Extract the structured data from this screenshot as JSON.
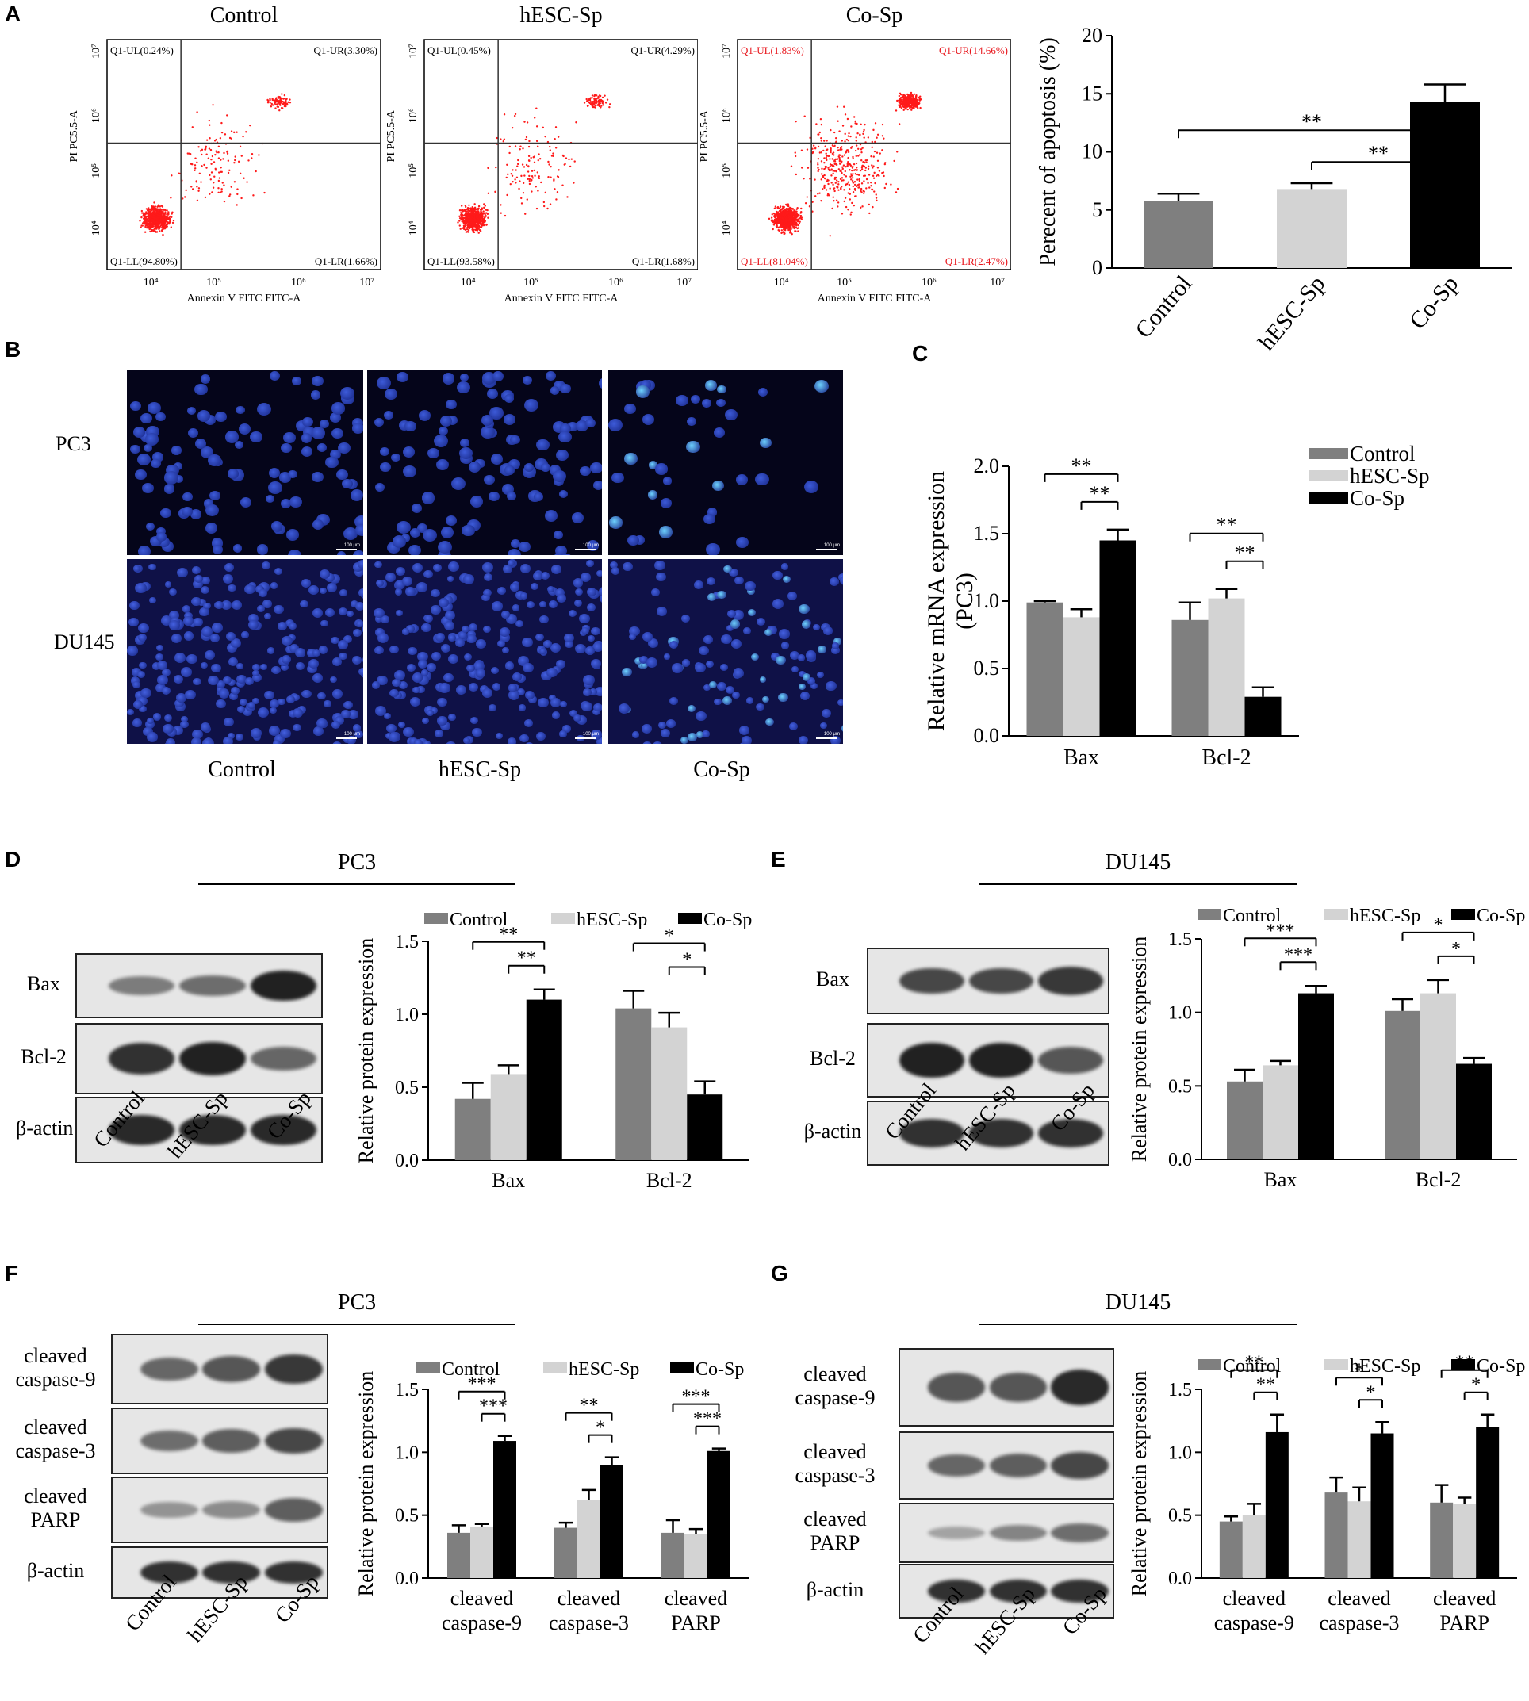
{
  "panels": {
    "A": {
      "label": "A",
      "flow": [
        {
          "title": "Control",
          "quadrants": {
            "ul": "Q1-UL(0.24%)",
            "ur": "Q1-UR(3.30%)",
            "ll": "Q1-LL(94.80%)",
            "lr": "Q1-LR(1.66%)"
          },
          "red_text": false
        },
        {
          "title": "hESC-Sp",
          "quadrants": {
            "ul": "Q1-UL(0.45%)",
            "ur": "Q1-UR(4.29%)",
            "ll": "Q1-LL(93.58%)",
            "lr": "Q1-LR(1.68%)"
          },
          "red_text": false
        },
        {
          "title": "Co-Sp",
          "quadrants": {
            "ul": "Q1-UL(1.83%)",
            "ur": "Q1-UR(14.66%)",
            "ll": "Q1-LL(81.04%)",
            "lr": "Q1-LR(2.47%)"
          },
          "red_text": true
        }
      ],
      "flow_x_label": "Annexin V FITC FITC-A",
      "flow_y_label": "PI PC5.5-A",
      "flow_ticks": {
        "x": [
          "10⁴",
          "10⁵",
          "10⁶",
          "10⁷"
        ],
        "y": [
          "10⁴",
          "10⁵",
          "10⁶",
          "10⁷"
        ]
      }
    },
    "B": {
      "label": "B",
      "rows": [
        "PC3",
        "DU145"
      ],
      "cols": [
        "Control",
        "hESC-Sp",
        "Co-Sp"
      ],
      "scale_text": "100 μm"
    },
    "C": {
      "label": "C"
    },
    "D": {
      "label": "D",
      "title": "PC3",
      "blot_labels": [
        "Bax",
        "Bcl-2",
        "β-actin"
      ],
      "lanes": [
        "Control",
        "hESC-Sp",
        "Co-Sp"
      ]
    },
    "E": {
      "label": "E",
      "title": "DU145",
      "blot_labels": [
        "Bax",
        "Bcl-2",
        "β-actin"
      ],
      "lanes": [
        "Control",
        "hESC-Sp",
        "Co-Sp"
      ]
    },
    "F": {
      "label": "F",
      "title": "PC3",
      "blot_labels": [
        "cleaved\ncaspase-9",
        "cleaved\ncaspase-3",
        "cleaved\nPARP",
        "β-actin"
      ],
      "lanes": [
        "Control",
        "hESC-Sp",
        "Co-Sp"
      ]
    },
    "G": {
      "label": "G",
      "title": "DU145",
      "blot_labels": [
        "cleaved\ncaspase-9",
        "cleaved\ncaspase-3",
        "cleaved\nPARP",
        "β-actin"
      ],
      "lanes": [
        "Control",
        "hESC-Sp",
        "Co-Sp"
      ]
    }
  },
  "colors": {
    "control": "#7f7f7f",
    "hesc": "#d3d3d3",
    "cosp": "#000000",
    "dots": "#ff1a1a"
  },
  "chart_data": [
    {
      "id": "A",
      "type": "bar",
      "categories": [
        "Control",
        "hESC-Sp",
        "Co-Sp"
      ],
      "values": [
        5.8,
        6.8,
        14.3
      ],
      "errors": [
        0.6,
        0.5,
        1.5
      ],
      "ylabel": "Perecent of apoptosis (%)",
      "ylim": [
        0,
        20
      ],
      "yticks": [
        "0",
        "5",
        "10",
        "15",
        "20"
      ],
      "sig": [
        {
          "from": 0,
          "to": 2,
          "text": "**"
        },
        {
          "from": 1,
          "to": 2,
          "text": "**"
        }
      ]
    },
    {
      "id": "C",
      "type": "bar",
      "categories": [
        "Bax",
        "Bcl-2"
      ],
      "series": [
        {
          "name": "Control",
          "values": [
            0.99,
            0.86
          ],
          "errors": [
            0.01,
            0.13
          ]
        },
        {
          "name": "hESC-Sp",
          "values": [
            0.88,
            1.02
          ],
          "errors": [
            0.06,
            0.07
          ]
        },
        {
          "name": "Co-Sp",
          "values": [
            1.45,
            0.29
          ],
          "errors": [
            0.08,
            0.07
          ]
        }
      ],
      "ylabel": "Relative mRNA expression\n(PC3)",
      "ylim": [
        0,
        2.0
      ],
      "yticks": [
        "0.0",
        "0.5",
        "1.0",
        "1.5",
        "2.0"
      ],
      "sig": [
        {
          "group": 0,
          "from": 0,
          "to": 2,
          "text": "**"
        },
        {
          "group": 0,
          "from": 1,
          "to": 2,
          "text": "**"
        },
        {
          "group": 1,
          "from": 0,
          "to": 2,
          "text": "**"
        },
        {
          "group": 1,
          "from": 1,
          "to": 2,
          "text": "**"
        }
      ]
    },
    {
      "id": "D",
      "type": "bar",
      "categories": [
        "Bax",
        "Bcl-2"
      ],
      "series": [
        {
          "name": "Control",
          "values": [
            0.42,
            1.04
          ],
          "errors": [
            0.11,
            0.12
          ]
        },
        {
          "name": "hESC-Sp",
          "values": [
            0.59,
            0.91
          ],
          "errors": [
            0.06,
            0.1
          ]
        },
        {
          "name": "Co-Sp",
          "values": [
            1.1,
            0.45
          ],
          "errors": [
            0.07,
            0.09
          ]
        }
      ],
      "ylabel": "Relative protein expression",
      "ylim": [
        0,
        1.5
      ],
      "yticks": [
        "0.0",
        "0.5",
        "1.0",
        "1.5"
      ],
      "sig": [
        {
          "group": 0,
          "from": 0,
          "to": 2,
          "text": "**"
        },
        {
          "group": 0,
          "from": 1,
          "to": 2,
          "text": "**"
        },
        {
          "group": 1,
          "from": 0,
          "to": 2,
          "text": "*"
        },
        {
          "group": 1,
          "from": 1,
          "to": 2,
          "text": "*"
        }
      ]
    },
    {
      "id": "E",
      "type": "bar",
      "categories": [
        "Bax",
        "Bcl-2"
      ],
      "series": [
        {
          "name": "Control",
          "values": [
            0.53,
            1.01
          ],
          "errors": [
            0.08,
            0.08
          ]
        },
        {
          "name": "hESC-Sp",
          "values": [
            0.64,
            1.13
          ],
          "errors": [
            0.03,
            0.09
          ]
        },
        {
          "name": "Co-Sp",
          "values": [
            1.13,
            0.65
          ],
          "errors": [
            0.05,
            0.04
          ]
        }
      ],
      "ylabel": "Relative protein expression",
      "ylim": [
        0,
        1.5
      ],
      "yticks": [
        "0.0",
        "0.5",
        "1.0",
        "1.5"
      ],
      "sig": [
        {
          "group": 0,
          "from": 0,
          "to": 2,
          "text": "***"
        },
        {
          "group": 0,
          "from": 1,
          "to": 2,
          "text": "***"
        },
        {
          "group": 1,
          "from": 0,
          "to": 2,
          "text": "*"
        },
        {
          "group": 1,
          "from": 1,
          "to": 2,
          "text": "*"
        }
      ]
    },
    {
      "id": "F",
      "type": "bar",
      "categories": [
        "cleaved\ncaspase-9",
        "cleaved\ncaspase-3",
        "cleaved\nPARP"
      ],
      "series": [
        {
          "name": "Control",
          "values": [
            0.36,
            0.4,
            0.36
          ],
          "errors": [
            0.06,
            0.04,
            0.1
          ]
        },
        {
          "name": "hESC-Sp",
          "values": [
            0.41,
            0.62,
            0.35
          ],
          "errors": [
            0.02,
            0.08,
            0.04
          ]
        },
        {
          "name": "Co-Sp",
          "values": [
            1.09,
            0.9,
            1.01
          ],
          "errors": [
            0.04,
            0.06,
            0.02
          ]
        }
      ],
      "ylabel": "Relative protein expression",
      "ylim": [
        0,
        1.5
      ],
      "yticks": [
        "0.0",
        "0.5",
        "1.0",
        "1.5"
      ],
      "sig": [
        {
          "group": 0,
          "from": 0,
          "to": 2,
          "text": "***"
        },
        {
          "group": 0,
          "from": 1,
          "to": 2,
          "text": "***"
        },
        {
          "group": 1,
          "from": 0,
          "to": 2,
          "text": "**"
        },
        {
          "group": 1,
          "from": 1,
          "to": 2,
          "text": "*"
        },
        {
          "group": 2,
          "from": 0,
          "to": 2,
          "text": "***"
        },
        {
          "group": 2,
          "from": 1,
          "to": 2,
          "text": "***"
        }
      ]
    },
    {
      "id": "G",
      "type": "bar",
      "categories": [
        "cleaved\ncaspase-9",
        "cleaved\ncaspase-3",
        "cleaved\nPARP"
      ],
      "series": [
        {
          "name": "Control",
          "values": [
            0.45,
            0.68,
            0.6
          ],
          "errors": [
            0.04,
            0.12,
            0.14
          ]
        },
        {
          "name": "hESC-Sp",
          "values": [
            0.5,
            0.61,
            0.59
          ],
          "errors": [
            0.09,
            0.11,
            0.05
          ]
        },
        {
          "name": "Co-Sp",
          "values": [
            1.16,
            1.15,
            1.2
          ],
          "errors": [
            0.14,
            0.09,
            0.1
          ]
        }
      ],
      "ylabel": "Relative protein expression",
      "ylim": [
        0,
        1.5
      ],
      "yticks": [
        "0.0",
        "0.5",
        "1.0",
        "1.5"
      ],
      "sig": [
        {
          "group": 0,
          "from": 0,
          "to": 2,
          "text": "**"
        },
        {
          "group": 0,
          "from": 1,
          "to": 2,
          "text": "**"
        },
        {
          "group": 1,
          "from": 0,
          "to": 2,
          "text": "*"
        },
        {
          "group": 1,
          "from": 1,
          "to": 2,
          "text": "*"
        },
        {
          "group": 2,
          "from": 0,
          "to": 2,
          "text": "**"
        },
        {
          "group": 2,
          "from": 1,
          "to": 2,
          "text": "*"
        }
      ]
    }
  ]
}
